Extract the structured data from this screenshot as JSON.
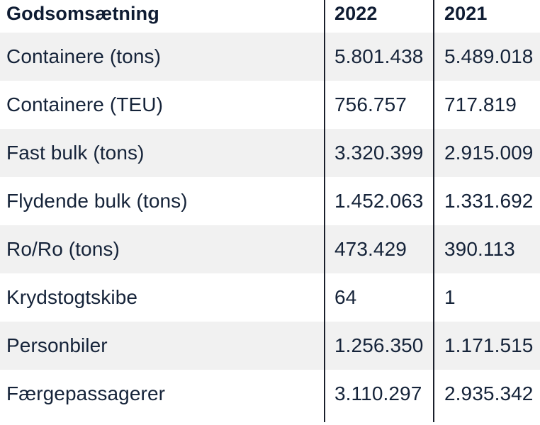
{
  "table": {
    "headers": {
      "label": "Godsomsætning",
      "year1": "2022",
      "year2": "2021"
    },
    "rows": [
      {
        "label": "Containere (tons)",
        "v2022": "5.801.438",
        "v2021": "5.489.018"
      },
      {
        "label": "Containere (TEU)",
        "v2022": "756.757",
        "v2021": "717.819"
      },
      {
        "label": "Fast bulk (tons)",
        "v2022": "3.320.399",
        "v2021": "2.915.009"
      },
      {
        "label": "Flydende bulk (tons)",
        "v2022": "1.452.063",
        "v2021": "1.331.692"
      },
      {
        "label": "Ro/Ro (tons)",
        "v2022": "473.429",
        "v2021": "390.113"
      },
      {
        "label": "Krydstogtskibe",
        "v2022": "64",
        "v2021": "1"
      },
      {
        "label": "Personbiler",
        "v2022": "1.256.350",
        "v2021": "1.171.515"
      },
      {
        "label": "Færgepassagerer",
        "v2022": "3.110.297",
        "v2021": "2.935.342"
      }
    ]
  },
  "colors": {
    "text": "#14213d",
    "stripe": "#f1f1f1",
    "divider": "#1a1f2b"
  }
}
